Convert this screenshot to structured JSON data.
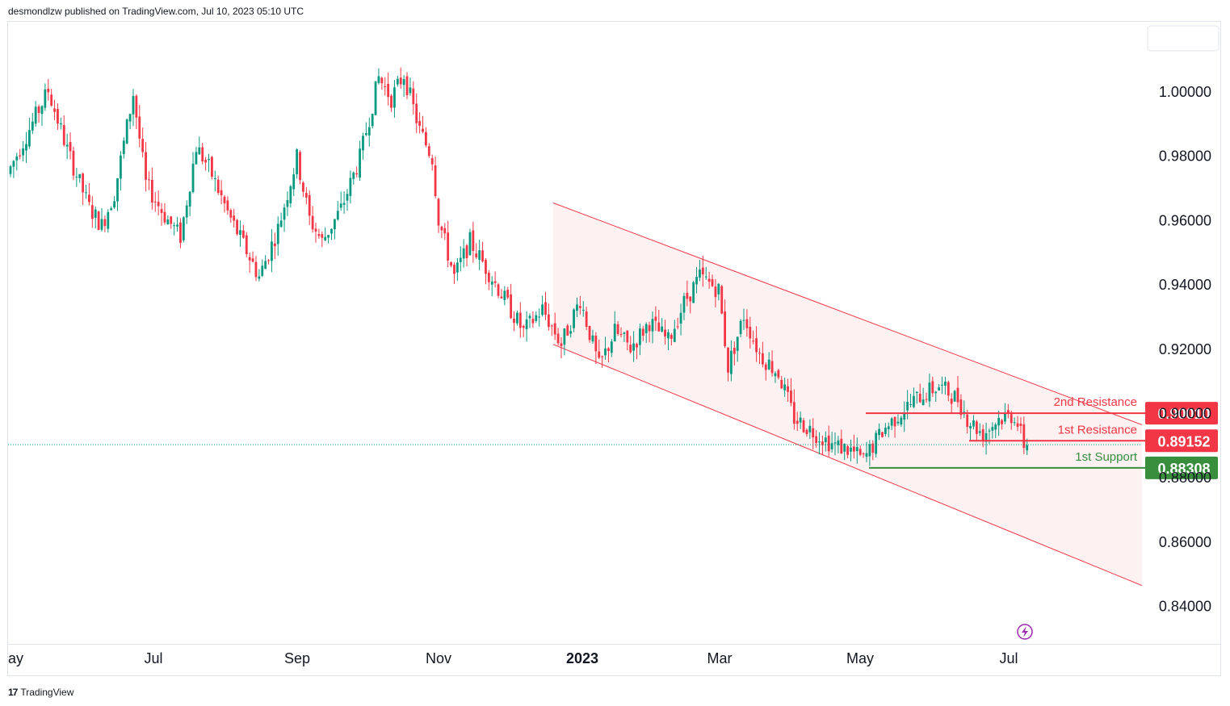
{
  "header": {
    "published": "desmondlzw published on TradingView.com, Jul 10, 2023 05:10 UTC"
  },
  "footer": {
    "brand": "TradingView",
    "logo_glyph": "17"
  },
  "chart_data": {
    "type": "candlestick",
    "y_axis": {
      "range": [
        0.83,
        1.0215
      ],
      "ticks": [
        "1.00000",
        "0.98000",
        "0.96000",
        "0.94000",
        "0.92000",
        "0.90000",
        "0.88000",
        "0.86000",
        "0.84000"
      ],
      "tick_values": [
        1.0,
        0.98,
        0.96,
        0.94,
        0.92,
        0.9,
        0.88,
        0.86,
        0.84
      ]
    },
    "x_axis": {
      "ticks": [
        "ay",
        "Jul",
        "Sep",
        "Nov",
        "2023",
        "Mar",
        "May",
        "Jul"
      ],
      "bold_ticks": [
        "2023"
      ]
    },
    "current_price": 0.8903,
    "price_path": [
      [
        0,
        0.9745
      ],
      [
        8,
        0.9905
      ],
      [
        13,
        1.0005
      ],
      [
        19,
        0.982
      ],
      [
        26,
        0.964
      ],
      [
        30,
        0.9585
      ],
      [
        34,
        0.9685
      ],
      [
        40,
        0.9995
      ],
      [
        44,
        0.9715
      ],
      [
        50,
        0.9615
      ],
      [
        55,
        0.955
      ],
      [
        60,
        0.983
      ],
      [
        64,
        0.9765
      ],
      [
        70,
        0.9625
      ],
      [
        76,
        0.9505
      ],
      [
        80,
        0.9425
      ],
      [
        86,
        0.9575
      ],
      [
        92,
        0.9795
      ],
      [
        96,
        0.9605
      ],
      [
        100,
        0.9535
      ],
      [
        106,
        0.9635
      ],
      [
        112,
        0.9795
      ],
      [
        118,
        1.0045
      ],
      [
        122,
        0.998
      ],
      [
        126,
        1.0055
      ],
      [
        131,
        0.988
      ],
      [
        135,
        0.9795
      ],
      [
        137,
        0.9605
      ],
      [
        142,
        0.9425
      ],
      [
        147,
        0.9535
      ],
      [
        152,
        0.9455
      ],
      [
        158,
        0.9355
      ],
      [
        164,
        0.9255
      ],
      [
        170,
        0.9325
      ],
      [
        176,
        0.9215
      ],
      [
        182,
        0.9355
      ],
      [
        188,
        0.9145
      ],
      [
        193,
        0.9255
      ],
      [
        198,
        0.9205
      ],
      [
        204,
        0.9285
      ],
      [
        210,
        0.9225
      ],
      [
        215,
        0.9345
      ],
      [
        220,
        0.9425
      ],
      [
        226,
        0.9385
      ],
      [
        229,
        0.9145
      ],
      [
        234,
        0.9305
      ],
      [
        239,
        0.9185
      ],
      [
        245,
        0.9125
      ],
      [
        250,
        0.8985
      ],
      [
        256,
        0.8945
      ],
      [
        262,
        0.8905
      ],
      [
        268,
        0.8885
      ],
      [
        272,
        0.8855
      ],
      [
        278,
        0.8945
      ],
      [
        284,
        0.9005
      ],
      [
        290,
        0.9055
      ],
      [
        296,
        0.9085
      ],
      [
        302,
        0.9045
      ],
      [
        305,
        0.8985
      ],
      [
        310,
        0.8935
      ],
      [
        315,
        0.8985
      ],
      [
        320,
        0.8995
      ],
      [
        323,
        0.8905
      ]
    ],
    "channel": {
      "upper": [
        [
          0.9655,
          0.9455
        ],
        [
          1.0,
          0.8965
        ]
      ],
      "lower": [
        [
          0.9215,
          0.9015
        ],
        [
          1.0,
          0.8465
        ]
      ]
    },
    "levels": [
      {
        "name": "2nd Resistance",
        "price": "0.90010",
        "value": 0.9001,
        "color": "#f23645"
      },
      {
        "name": "1st Resistance",
        "price": "0.89152",
        "value": 0.89152,
        "color": "#f23645"
      },
      {
        "name": "1st Support",
        "price": "0.88308",
        "value": 0.88308,
        "color": "#388e3c"
      }
    ]
  },
  "colors": {
    "up": "#089981",
    "down": "#f23645",
    "channel_fill": "#fdeeee",
    "channel_line": "#f23645",
    "support": "#388e3c",
    "resistance": "#f23645",
    "price_line": "#089981",
    "grid": "#e0e3eb"
  },
  "icons": {
    "flash": "lightning-icon"
  }
}
